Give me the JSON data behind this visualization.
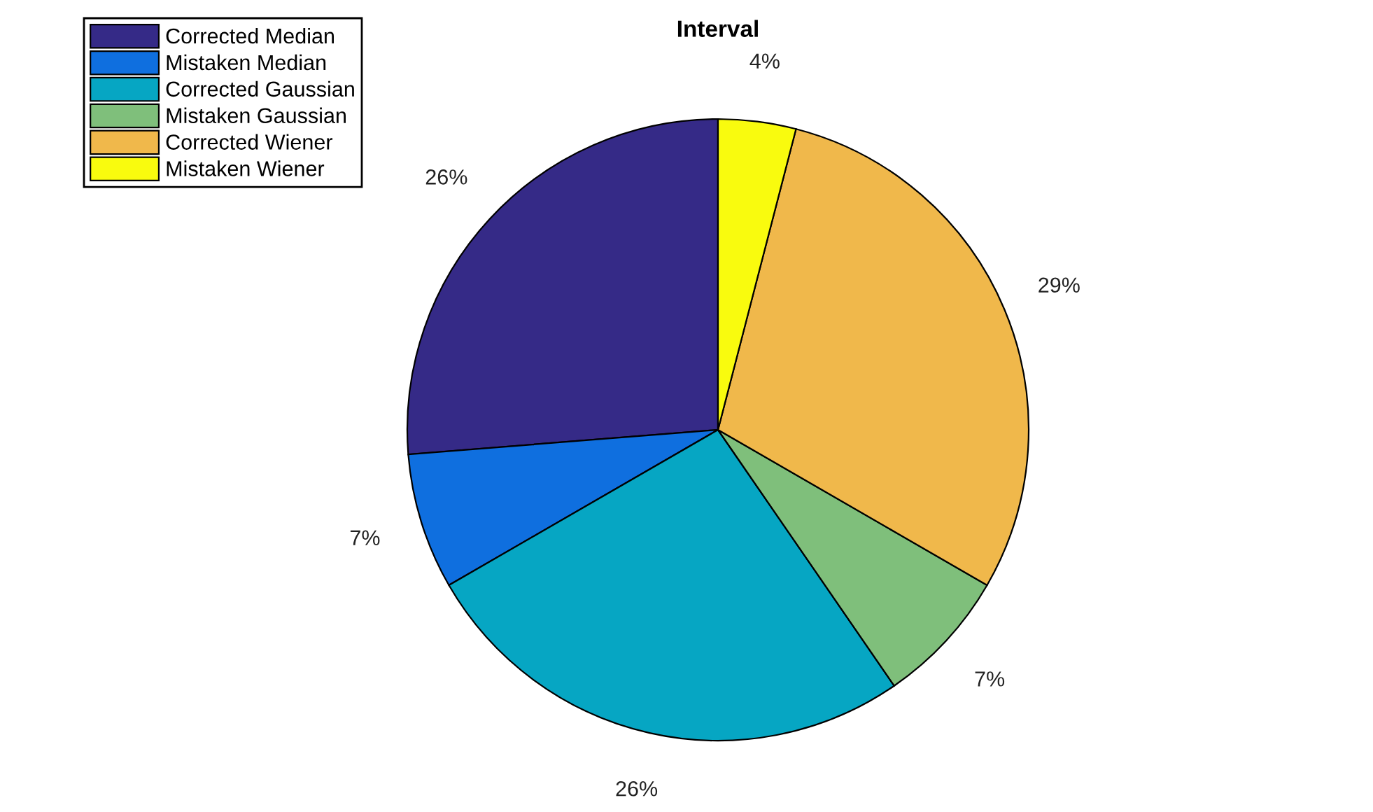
{
  "chart_data": {
    "type": "pie",
    "title": "Interval",
    "categories": [
      "Corrected Median",
      "Mistaken Median",
      "Corrected Gaussian",
      "Mistaken Gaussian",
      "Corrected Wiener",
      "Mistaken Wiener"
    ],
    "values": [
      26,
      7,
      26,
      7,
      29,
      4
    ],
    "value_labels": [
      "26%",
      "7%",
      "26%",
      "7%",
      "29%",
      "4%"
    ],
    "colors": [
      "#352a87",
      "#0f6fdf",
      "#06a6c3",
      "#7fbf7b",
      "#f0b84b",
      "#f9fb0e"
    ],
    "legend": "top left"
  }
}
